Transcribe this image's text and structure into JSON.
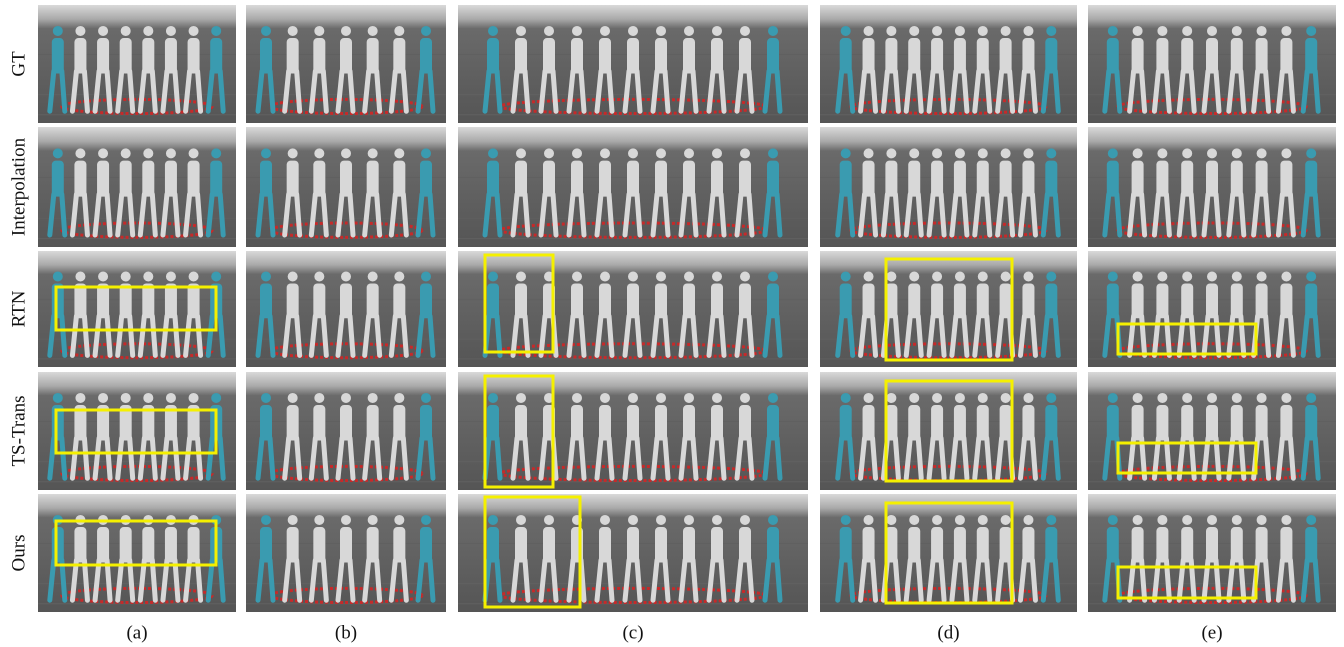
{
  "rows": [
    "GT",
    "Interpolation",
    "RTN",
    "TS-Trans",
    "Ours"
  ],
  "columns": [
    "(a)",
    "(b)",
    "(c)",
    "(d)",
    "(e)"
  ]
}
